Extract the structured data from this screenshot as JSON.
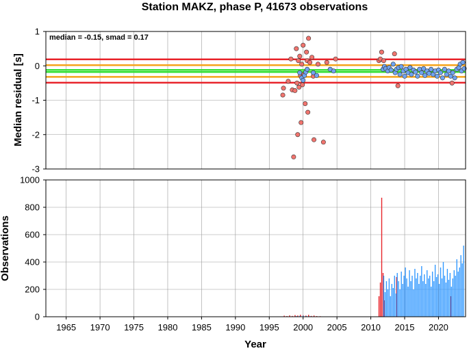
{
  "chart_data": [
    {
      "type": "scatter",
      "title": "Station MAKZ, phase P, 41673 observations",
      "annotation": "median = -0.15, smad = 0.17",
      "xlabel": "",
      "ylabel": "Median residual [s]",
      "xlim": [
        1962.0,
        2024.0
      ],
      "ylim": [
        -3,
        1
      ],
      "yticks": [
        "1",
        "0",
        "-1",
        "-2",
        "-3"
      ],
      "grid": true,
      "reference_lines": [
        {
          "y": 0.19,
          "color": "#e8232a"
        },
        {
          "y": 0.02,
          "color": "#f5a31a"
        },
        {
          "y": -0.12,
          "color": "#35e035"
        },
        {
          "y": -0.18,
          "color": "#35e035"
        },
        {
          "y": -0.32,
          "color": "#f5a31a"
        },
        {
          "y": -0.49,
          "color": "#e8232a"
        }
      ],
      "series": [
        {
          "color": "#f0746e",
          "points": [
            [
              1997.0,
              -0.85
            ],
            [
              1997.1,
              -0.65
            ],
            [
              1997.8,
              -0.45
            ],
            [
              1998.2,
              0.2
            ],
            [
              1998.4,
              -0.7
            ],
            [
              1998.6,
              -2.65
            ],
            [
              1998.8,
              -0.72
            ],
            [
              1999.0,
              0.5
            ],
            [
              1999.1,
              -0.5
            ],
            [
              1999.2,
              -2.0
            ],
            [
              1999.3,
              0.15
            ],
            [
              1999.4,
              -0.62
            ],
            [
              1999.5,
              0.28
            ],
            [
              1999.6,
              -0.28
            ],
            [
              1999.7,
              -1.65
            ],
            [
              1999.8,
              0.05
            ],
            [
              1999.9,
              -0.55
            ],
            [
              2000.0,
              0.6
            ],
            [
              2000.1,
              -0.25
            ],
            [
              2000.3,
              -1.1
            ],
            [
              2000.5,
              0.4
            ],
            [
              2000.6,
              0.15
            ],
            [
              2000.7,
              -1.35
            ],
            [
              2000.8,
              0.8
            ],
            [
              2001.0,
              0.1
            ],
            [
              2001.3,
              0.25
            ],
            [
              2001.5,
              -0.3
            ],
            [
              2001.6,
              -2.15
            ],
            [
              2002.2,
              0.05
            ],
            [
              2003.0,
              -2.22
            ],
            [
              2003.5,
              0.1
            ],
            [
              2004.8,
              0.2
            ],
            [
              2011.2,
              0.15
            ],
            [
              2011.4,
              0.2
            ],
            [
              2011.6,
              0.4
            ],
            [
              2011.9,
              0.15
            ],
            [
              2013.5,
              0.35
            ],
            [
              2014.0,
              -0.58
            ],
            [
              2022.0,
              -0.5
            ]
          ]
        },
        {
          "color": "#6fa3f0",
          "points": [
            [
              1999.5,
              -0.2
            ],
            [
              1999.8,
              -0.35
            ],
            [
              2000.0,
              -0.42
            ],
            [
              2000.2,
              -0.28
            ],
            [
              2000.4,
              -0.18
            ],
            [
              2000.6,
              -0.1
            ],
            [
              2001.5,
              -0.2
            ],
            [
              2002.0,
              -0.28
            ],
            [
              2004.0,
              -0.1
            ],
            [
              2004.5,
              -0.15
            ],
            [
              2011.8,
              -0.1
            ],
            [
              2012.0,
              -0.02
            ],
            [
              2012.2,
              -0.08
            ],
            [
              2012.5,
              -0.15
            ],
            [
              2012.7,
              -0.05
            ],
            [
              2013.0,
              -0.12
            ],
            [
              2013.3,
              0.05
            ],
            [
              2013.6,
              -0.2
            ],
            [
              2013.8,
              -0.1
            ],
            [
              2014.1,
              -0.05
            ],
            [
              2014.3,
              -0.25
            ],
            [
              2014.5,
              -0.02
            ],
            [
              2014.8,
              -0.15
            ],
            [
              2015.0,
              -0.3
            ],
            [
              2015.2,
              -0.1
            ],
            [
              2015.5,
              -0.2
            ],
            [
              2015.8,
              -0.05
            ],
            [
              2016.0,
              -0.25
            ],
            [
              2016.3,
              -0.12
            ],
            [
              2016.6,
              -0.18
            ],
            [
              2016.9,
              -0.3
            ],
            [
              2017.2,
              -0.1
            ],
            [
              2017.5,
              -0.2
            ],
            [
              2017.8,
              -0.08
            ],
            [
              2018.0,
              -0.28
            ],
            [
              2018.3,
              -0.15
            ],
            [
              2018.6,
              -0.22
            ],
            [
              2018.9,
              -0.1
            ],
            [
              2019.2,
              -0.25
            ],
            [
              2019.5,
              -0.15
            ],
            [
              2019.8,
              -0.3
            ],
            [
              2020.0,
              -0.12
            ],
            [
              2020.3,
              -0.2
            ],
            [
              2020.6,
              -0.35
            ],
            [
              2020.9,
              -0.1
            ],
            [
              2021.2,
              -0.25
            ],
            [
              2021.5,
              -0.15
            ],
            [
              2021.8,
              -0.3
            ],
            [
              2022.1,
              -0.2
            ],
            [
              2022.4,
              -0.35
            ],
            [
              2022.7,
              -0.1
            ],
            [
              2023.0,
              -0.05
            ],
            [
              2023.2,
              0.05
            ],
            [
              2023.4,
              -0.15
            ],
            [
              2023.6,
              0.1
            ],
            [
              2023.8,
              -0.08
            ]
          ]
        }
      ]
    },
    {
      "type": "bar",
      "xlabel": "Year",
      "ylabel": "Observations",
      "xlim": [
        1962.0,
        2024.0
      ],
      "ylim": [
        0,
        1000
      ],
      "xticks": [
        "1965",
        "1970",
        "1975",
        "1980",
        "1985",
        "1990",
        "1995",
        "2000",
        "2005",
        "2010",
        "2015",
        "2020"
      ],
      "yticks": [
        "1000",
        "800",
        "600",
        "400",
        "200",
        "0"
      ],
      "grid": true,
      "series": [
        {
          "color": "#e8232a",
          "x": [
            1997.2,
            1997.6,
            1998.0,
            1998.4,
            1998.8,
            1999.2,
            1999.6,
            2000.0,
            2000.4,
            2000.8,
            2001.2,
            2001.6,
            2002.0,
            2002.5,
            2011.2,
            2011.4,
            2011.6,
            2011.8,
            2012.0,
            2013.8,
            2021.8
          ],
          "values": [
            8,
            5,
            10,
            6,
            12,
            9,
            15,
            11,
            8,
            14,
            6,
            9,
            5,
            4,
            150,
            250,
            870,
            320,
            120,
            290,
            150
          ]
        },
        {
          "color": "#3399ff",
          "x": [
            1999.0,
            1999.5,
            2000.0,
            2000.5,
            2001.0,
            2011.9,
            2012.1,
            2012.3,
            2012.5,
            2012.7,
            2012.9,
            2013.1,
            2013.3,
            2013.5,
            2013.7,
            2013.9,
            2014.1,
            2014.3,
            2014.5,
            2014.7,
            2014.9,
            2015.1,
            2015.3,
            2015.5,
            2015.7,
            2015.9,
            2016.1,
            2016.3,
            2016.5,
            2016.7,
            2016.9,
            2017.1,
            2017.3,
            2017.5,
            2017.7,
            2017.9,
            2018.1,
            2018.3,
            2018.5,
            2018.7,
            2018.9,
            2019.1,
            2019.3,
            2019.5,
            2019.7,
            2019.9,
            2020.1,
            2020.3,
            2020.5,
            2020.7,
            2020.9,
            2021.1,
            2021.3,
            2021.5,
            2021.7,
            2021.9,
            2022.1,
            2022.3,
            2022.5,
            2022.7,
            2022.9,
            2023.1,
            2023.3,
            2023.5,
            2023.7
          ],
          "values": [
            5,
            6,
            8,
            5,
            4,
            300,
            180,
            260,
            200,
            280,
            150,
            240,
            210,
            300,
            170,
            320,
            260,
            200,
            330,
            240,
            300,
            360,
            280,
            220,
            340,
            260,
            300,
            200,
            350,
            280,
            320,
            240,
            300,
            370,
            260,
            310,
            240,
            340,
            280,
            300,
            220,
            330,
            260,
            380,
            290,
            310,
            240,
            360,
            280,
            400,
            300,
            250,
            350,
            270,
            320,
            220,
            280,
            340,
            300,
            420,
            330,
            360,
            450,
            390,
            520
          ]
        }
      ]
    }
  ]
}
